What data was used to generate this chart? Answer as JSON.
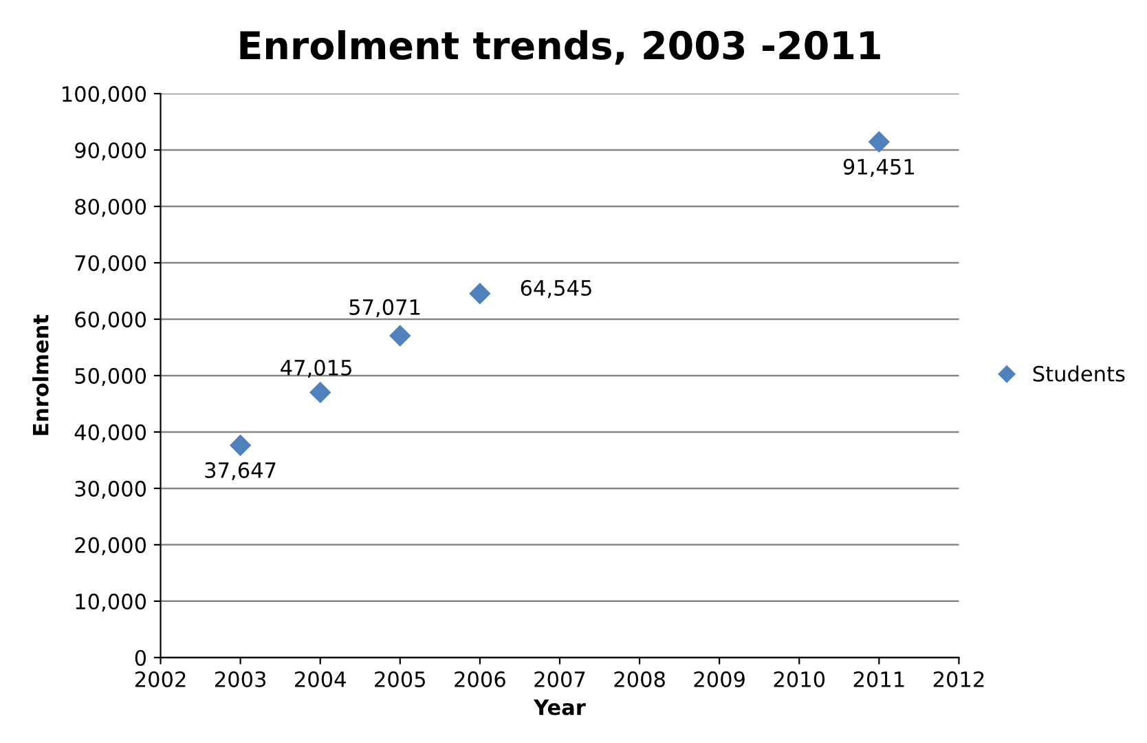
{
  "chart_data": {
    "type": "scatter",
    "title": "Enrolment trends, 2003 -2011",
    "xlabel": "Year",
    "ylabel": "Enrolment",
    "x": [
      2003,
      2004,
      2005,
      2006,
      2011
    ],
    "series": [
      {
        "name": "Students",
        "color": "#4f81bd",
        "values": [
          37647,
          47015,
          57071,
          64545,
          91451
        ],
        "value_labels": [
          "37,647",
          "47,015",
          "57,071",
          "64,545",
          "91,451"
        ]
      }
    ],
    "xlim": [
      2002,
      2012
    ],
    "xticks": [
      2002,
      2003,
      2004,
      2005,
      2006,
      2007,
      2008,
      2009,
      2010,
      2011,
      2012
    ],
    "ylim": [
      0,
      100000
    ],
    "yticks": [
      {
        "value": 0,
        "label": "0"
      },
      {
        "value": 10000,
        "label": "10,000"
      },
      {
        "value": 20000,
        "label": "20,000"
      },
      {
        "value": 30000,
        "label": "30,000"
      },
      {
        "value": 40000,
        "label": "40,000"
      },
      {
        "value": 50000,
        "label": "50,000"
      },
      {
        "value": 60000,
        "label": "60,000"
      },
      {
        "value": 70000,
        "label": "70,000"
      },
      {
        "value": 80000,
        "label": "80,000"
      },
      {
        "value": 90000,
        "label": "90,000"
      },
      {
        "value": 100000,
        "label": "100,000"
      }
    ],
    "grid": "y",
    "legend": "right",
    "marker": "diamond"
  }
}
